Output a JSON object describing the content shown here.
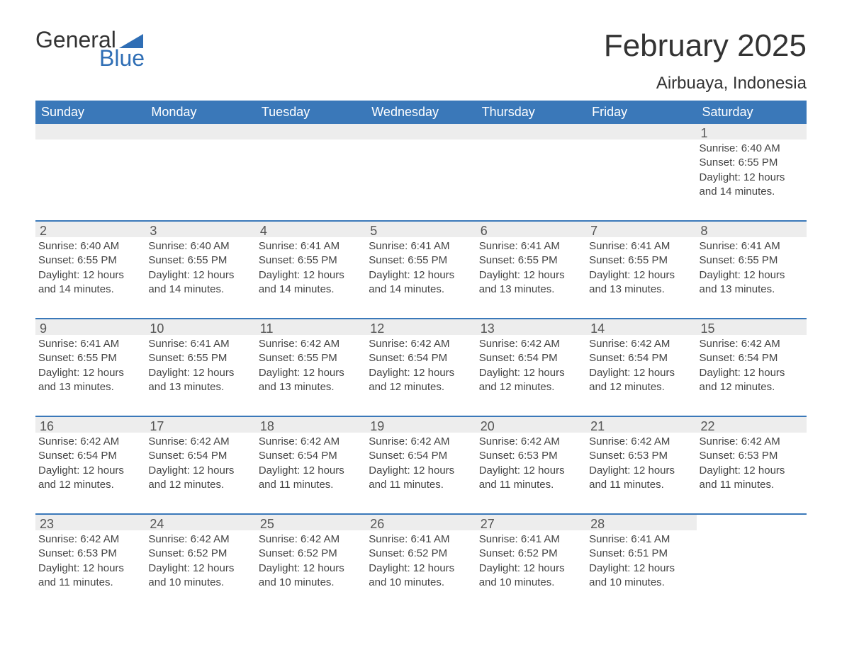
{
  "logo": {
    "word1": "General",
    "word2": "Blue",
    "shape_color": "#2f6eb5"
  },
  "title": "February 2025",
  "location": "Airbuaya, Indonesia",
  "colors": {
    "header_bg": "#3a78b9",
    "header_text": "#ffffff",
    "row_border": "#3a78b9",
    "daynum_bg": "#ededed",
    "text": "#444444"
  },
  "days_of_week": [
    "Sunday",
    "Monday",
    "Tuesday",
    "Wednesday",
    "Thursday",
    "Friday",
    "Saturday"
  ],
  "weeks": [
    [
      null,
      null,
      null,
      null,
      null,
      null,
      {
        "n": "1",
        "sunrise": "Sunrise: 6:40 AM",
        "sunset": "Sunset: 6:55 PM",
        "daylight": "Daylight: 12 hours and 14 minutes."
      }
    ],
    [
      {
        "n": "2",
        "sunrise": "Sunrise: 6:40 AM",
        "sunset": "Sunset: 6:55 PM",
        "daylight": "Daylight: 12 hours and 14 minutes."
      },
      {
        "n": "3",
        "sunrise": "Sunrise: 6:40 AM",
        "sunset": "Sunset: 6:55 PM",
        "daylight": "Daylight: 12 hours and 14 minutes."
      },
      {
        "n": "4",
        "sunrise": "Sunrise: 6:41 AM",
        "sunset": "Sunset: 6:55 PM",
        "daylight": "Daylight: 12 hours and 14 minutes."
      },
      {
        "n": "5",
        "sunrise": "Sunrise: 6:41 AM",
        "sunset": "Sunset: 6:55 PM",
        "daylight": "Daylight: 12 hours and 14 minutes."
      },
      {
        "n": "6",
        "sunrise": "Sunrise: 6:41 AM",
        "sunset": "Sunset: 6:55 PM",
        "daylight": "Daylight: 12 hours and 13 minutes."
      },
      {
        "n": "7",
        "sunrise": "Sunrise: 6:41 AM",
        "sunset": "Sunset: 6:55 PM",
        "daylight": "Daylight: 12 hours and 13 minutes."
      },
      {
        "n": "8",
        "sunrise": "Sunrise: 6:41 AM",
        "sunset": "Sunset: 6:55 PM",
        "daylight": "Daylight: 12 hours and 13 minutes."
      }
    ],
    [
      {
        "n": "9",
        "sunrise": "Sunrise: 6:41 AM",
        "sunset": "Sunset: 6:55 PM",
        "daylight": "Daylight: 12 hours and 13 minutes."
      },
      {
        "n": "10",
        "sunrise": "Sunrise: 6:41 AM",
        "sunset": "Sunset: 6:55 PM",
        "daylight": "Daylight: 12 hours and 13 minutes."
      },
      {
        "n": "11",
        "sunrise": "Sunrise: 6:42 AM",
        "sunset": "Sunset: 6:55 PM",
        "daylight": "Daylight: 12 hours and 13 minutes."
      },
      {
        "n": "12",
        "sunrise": "Sunrise: 6:42 AM",
        "sunset": "Sunset: 6:54 PM",
        "daylight": "Daylight: 12 hours and 12 minutes."
      },
      {
        "n": "13",
        "sunrise": "Sunrise: 6:42 AM",
        "sunset": "Sunset: 6:54 PM",
        "daylight": "Daylight: 12 hours and 12 minutes."
      },
      {
        "n": "14",
        "sunrise": "Sunrise: 6:42 AM",
        "sunset": "Sunset: 6:54 PM",
        "daylight": "Daylight: 12 hours and 12 minutes."
      },
      {
        "n": "15",
        "sunrise": "Sunrise: 6:42 AM",
        "sunset": "Sunset: 6:54 PM",
        "daylight": "Daylight: 12 hours and 12 minutes."
      }
    ],
    [
      {
        "n": "16",
        "sunrise": "Sunrise: 6:42 AM",
        "sunset": "Sunset: 6:54 PM",
        "daylight": "Daylight: 12 hours and 12 minutes."
      },
      {
        "n": "17",
        "sunrise": "Sunrise: 6:42 AM",
        "sunset": "Sunset: 6:54 PM",
        "daylight": "Daylight: 12 hours and 12 minutes."
      },
      {
        "n": "18",
        "sunrise": "Sunrise: 6:42 AM",
        "sunset": "Sunset: 6:54 PM",
        "daylight": "Daylight: 12 hours and 11 minutes."
      },
      {
        "n": "19",
        "sunrise": "Sunrise: 6:42 AM",
        "sunset": "Sunset: 6:54 PM",
        "daylight": "Daylight: 12 hours and 11 minutes."
      },
      {
        "n": "20",
        "sunrise": "Sunrise: 6:42 AM",
        "sunset": "Sunset: 6:53 PM",
        "daylight": "Daylight: 12 hours and 11 minutes."
      },
      {
        "n": "21",
        "sunrise": "Sunrise: 6:42 AM",
        "sunset": "Sunset: 6:53 PM",
        "daylight": "Daylight: 12 hours and 11 minutes."
      },
      {
        "n": "22",
        "sunrise": "Sunrise: 6:42 AM",
        "sunset": "Sunset: 6:53 PM",
        "daylight": "Daylight: 12 hours and 11 minutes."
      }
    ],
    [
      {
        "n": "23",
        "sunrise": "Sunrise: 6:42 AM",
        "sunset": "Sunset: 6:53 PM",
        "daylight": "Daylight: 12 hours and 11 minutes."
      },
      {
        "n": "24",
        "sunrise": "Sunrise: 6:42 AM",
        "sunset": "Sunset: 6:52 PM",
        "daylight": "Daylight: 12 hours and 10 minutes."
      },
      {
        "n": "25",
        "sunrise": "Sunrise: 6:42 AM",
        "sunset": "Sunset: 6:52 PM",
        "daylight": "Daylight: 12 hours and 10 minutes."
      },
      {
        "n": "26",
        "sunrise": "Sunrise: 6:41 AM",
        "sunset": "Sunset: 6:52 PM",
        "daylight": "Daylight: 12 hours and 10 minutes."
      },
      {
        "n": "27",
        "sunrise": "Sunrise: 6:41 AM",
        "sunset": "Sunset: 6:52 PM",
        "daylight": "Daylight: 12 hours and 10 minutes."
      },
      {
        "n": "28",
        "sunrise": "Sunrise: 6:41 AM",
        "sunset": "Sunset: 6:51 PM",
        "daylight": "Daylight: 12 hours and 10 minutes."
      },
      null
    ]
  ]
}
